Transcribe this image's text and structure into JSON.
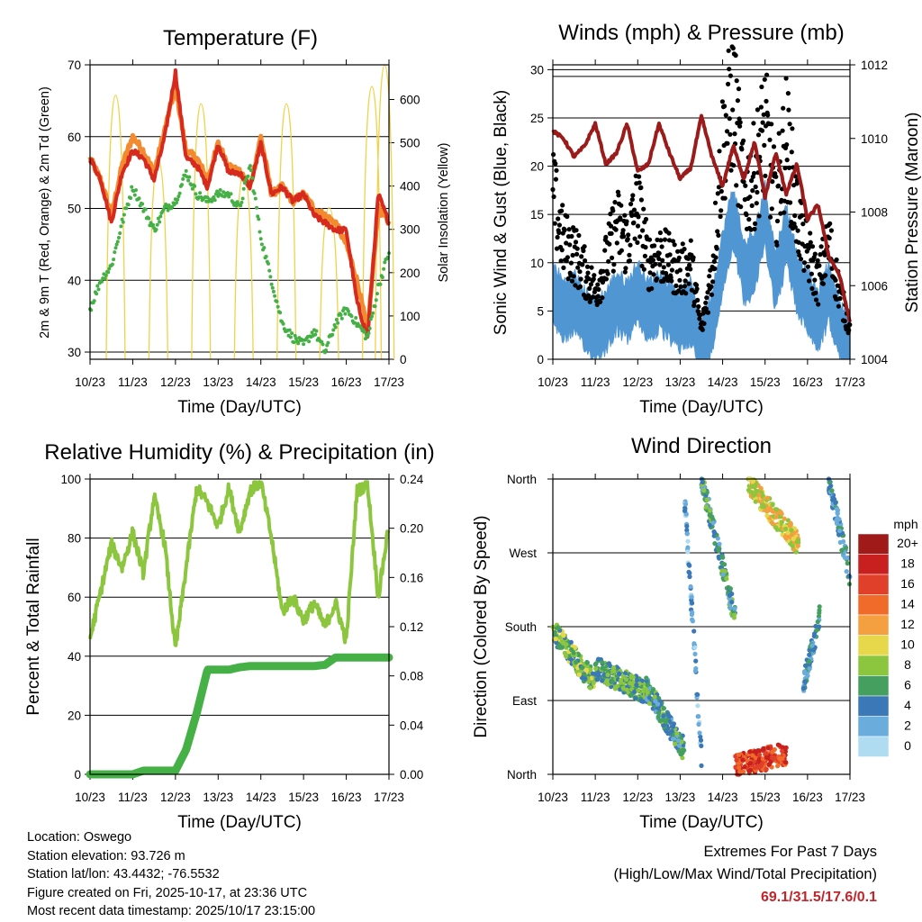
{
  "x_tick_labels": [
    "10/23",
    "11/23",
    "12/23",
    "13/23",
    "14/23",
    "15/23",
    "16/23",
    "17/23"
  ],
  "chart_data": [
    {
      "type": "line",
      "title": "Temperature (F)",
      "xlabel": "Time (Day/UTC)",
      "ylabel": "2m & 9m T (Red, Orange) & 2m Td (Green)",
      "ylabel_right": "Solar Insolation (Yellow)",
      "ylim": [
        29,
        70
      ],
      "ylim_right": [
        0,
        680
      ],
      "yticks": [
        "30",
        "40",
        "50",
        "60",
        "70"
      ],
      "yticks_right": [
        "0",
        "100",
        "200",
        "300",
        "400",
        "500",
        "600"
      ],
      "x": [
        0,
        0.25,
        0.5,
        0.75,
        1,
        1.25,
        1.5,
        1.75,
        2,
        2.25,
        2.5,
        2.75,
        3,
        3.25,
        3.5,
        3.75,
        4,
        4.25,
        4.5,
        4.75,
        5,
        5.25,
        5.5,
        5.75,
        6,
        6.25,
        6.5,
        6.75,
        7
      ],
      "series": [
        {
          "name": "2m T",
          "color": "#d62a1e",
          "values": [
            57,
            54,
            48,
            55,
            58,
            57,
            54,
            60,
            69,
            57,
            56,
            53,
            59,
            55,
            55,
            53,
            59,
            52,
            53,
            51,
            52,
            49,
            48,
            47,
            47,
            37,
            32,
            52,
            48
          ]
        },
        {
          "name": "9m T",
          "color": "#f28a30",
          "values": [
            57,
            54,
            49,
            56,
            60,
            58,
            55,
            61,
            67,
            58,
            57,
            54,
            59,
            56,
            55,
            53,
            60,
            52,
            53,
            51,
            52,
            50,
            49,
            48,
            45,
            40,
            33,
            50,
            48
          ]
        },
        {
          "name": "2m Td",
          "color": "#45b045",
          "values": [
            36,
            40,
            42,
            48,
            53,
            50,
            47,
            50,
            51,
            55,
            52,
            51,
            52,
            52,
            50,
            56,
            46,
            40,
            34,
            32,
            31,
            33,
            30,
            34,
            36,
            34,
            32,
            39,
            44
          ]
        },
        {
          "name": "Solar Insolation",
          "color": "#f0d24a",
          "peaks": [
            0.6,
            1.6,
            2.6,
            3.6,
            4.6,
            5.6,
            6.6,
            6.9
          ],
          "peak_values": [
            610,
            460,
            590,
            430,
            590,
            350,
            630,
            680
          ]
        }
      ]
    },
    {
      "type": "line",
      "title": "Winds (mph) & Pressure (mb)",
      "xlabel": "Time (Day/UTC)",
      "ylabel": "Sonic Wind & Gust (Blue, Black)",
      "ylabel_right": "Station Pressure (Maroon)",
      "ylim": [
        0,
        30.5
      ],
      "ylim_right": [
        1004,
        1012
      ],
      "yticks": [
        "0",
        "5",
        "10",
        "15",
        "20",
        "25",
        "30"
      ],
      "yticks_right": [
        "1004",
        "1006",
        "1008",
        "1010",
        "1012"
      ],
      "x": [
        0,
        0.25,
        0.5,
        0.75,
        1,
        1.25,
        1.5,
        1.75,
        2,
        2.25,
        2.5,
        2.75,
        3,
        3.25,
        3.5,
        3.75,
        4,
        4.25,
        4.5,
        4.75,
        5,
        5.25,
        5.5,
        5.75,
        6,
        6.25,
        6.5,
        6.75,
        7
      ],
      "series": [
        {
          "name": "Station Pressure",
          "color": "#9b1b1b",
          "values": [
            1010.2,
            1010,
            1009.5,
            1009.8,
            1010.4,
            1009.3,
            1009.6,
            1010.4,
            1009.1,
            1009.3,
            1010.4,
            1009.6,
            1008.9,
            1009.2,
            1010.6,
            1009.5,
            1008.7,
            1009.8,
            1008.9,
            1009.9,
            1008.4,
            1009.6,
            1008.5,
            1009.3,
            1007.8,
            1008.2,
            1006.8,
            1006.3,
            1005
          ]
        },
        {
          "name": "Sonic Wind",
          "color": "#5096d2",
          "values": [
            7,
            5,
            6,
            4,
            3,
            4,
            6,
            5,
            7,
            5,
            6,
            5,
            4,
            5,
            1,
            4,
            10,
            15,
            9,
            10,
            15,
            8,
            13,
            8,
            6,
            4,
            7,
            3,
            1
          ]
        },
        {
          "name": "Gust",
          "color": "#000000",
          "values": [
            17,
            12,
            11,
            9,
            7,
            10,
            14,
            12,
            16,
            10,
            11,
            10,
            9,
            10,
            3,
            9,
            22,
            27,
            17,
            19,
            24,
            16,
            23,
            15,
            11,
            8,
            12,
            7,
            3
          ]
        }
      ]
    },
    {
      "type": "line",
      "title": "Relative Humidity (%) & Precipitation (in)",
      "xlabel": "Time (Day/UTC)",
      "ylabel": "Percent & Total Rainfall",
      "ylim": [
        0,
        100
      ],
      "ylim_right": [
        0,
        0.24
      ],
      "yticks": [
        "0",
        "20",
        "40",
        "60",
        "80",
        "100"
      ],
      "yticks_right": [
        "0.00",
        "0.04",
        "0.08",
        "0.12",
        "0.16",
        "0.20",
        "0.24"
      ],
      "x": [
        0,
        0.25,
        0.5,
        0.75,
        1,
        1.25,
        1.5,
        1.75,
        2,
        2.25,
        2.5,
        2.75,
        3,
        3.25,
        3.5,
        3.75,
        4,
        4.25,
        4.5,
        4.75,
        5,
        5.25,
        5.5,
        5.75,
        6,
        6.25,
        6.5,
        6.75,
        7
      ],
      "series": [
        {
          "name": "Relative Humidity",
          "color": "#8cc63e",
          "values": [
            46,
            62,
            78,
            70,
            82,
            68,
            94,
            78,
            42,
            70,
            97,
            92,
            84,
            97,
            82,
            96,
            99,
            80,
            55,
            60,
            52,
            58,
            50,
            58,
            45,
            96,
            98,
            60,
            85
          ]
        },
        {
          "name": "Total Precipitation",
          "color": "#45b045",
          "values": [
            0,
            0,
            0,
            0,
            0,
            0.003,
            0.003,
            0.003,
            0.003,
            0.02,
            0.05,
            0.085,
            0.085,
            0.085,
            0.087,
            0.088,
            0.088,
            0.088,
            0.088,
            0.088,
            0.088,
            0.088,
            0.089,
            0.095,
            0.095,
            0.095,
            0.095,
            0.095,
            0.095
          ]
        }
      ]
    },
    {
      "type": "scatter",
      "title": "Wind Direction",
      "xlabel": "Time (Day/UTC)",
      "ylabel": "Direction (Colored By Speed)",
      "ylim": [
        0,
        360
      ],
      "yticks": [
        "North",
        "East",
        "South",
        "West",
        "North"
      ],
      "colorbar_title": "mph",
      "colorbar_labels": [
        "20+",
        "18",
        "16",
        "14",
        "12",
        "10",
        "8",
        "6",
        "4",
        "2",
        "0"
      ],
      "colorbar_colors": [
        "#a01a1a",
        "#c8201e",
        "#e0402a",
        "#f06a2a",
        "#f5a040",
        "#e6d84a",
        "#8cc63e",
        "#45a060",
        "#3a78b8",
        "#6aacdc",
        "#b0dcf2"
      ],
      "clusters": [
        {
          "day_start": 0,
          "day_end": 1.0,
          "dir_start": 175,
          "dir_end": 110,
          "speed": 7
        },
        {
          "day_start": 1.0,
          "day_end": 2.2,
          "dir_start": 130,
          "dir_end": 100,
          "speed": 6
        },
        {
          "day_start": 2.2,
          "day_end": 3.1,
          "dir_start": 105,
          "dir_end": 30,
          "speed": 5
        },
        {
          "day_start": 3.1,
          "day_end": 3.5,
          "dir_start": 340,
          "dir_end": 20,
          "speed": 2
        },
        {
          "day_start": 3.5,
          "day_end": 4.3,
          "dir_start": 360,
          "dir_end": 190,
          "speed": 5
        },
        {
          "day_start": 4.3,
          "day_end": 5.5,
          "dir_start": 10,
          "dir_end": 25,
          "speed": 16
        },
        {
          "day_start": 4.6,
          "day_end": 5.8,
          "dir_start": 355,
          "dir_end": 280,
          "speed": 10
        },
        {
          "day_start": 5.9,
          "day_end": 6.3,
          "dir_start": 110,
          "dir_end": 195,
          "speed": 4
        },
        {
          "day_start": 6.5,
          "day_end": 7.0,
          "dir_start": 360,
          "dir_end": 240,
          "speed": 4
        }
      ]
    }
  ],
  "info": {
    "location": "Location: Oswego",
    "elevation": "Station elevation: 93.726 m",
    "latlon": "Station lat/lon: 43.4432; -76.5532",
    "created": "Figure created on Fri, 2025-10-17, at 23:36 UTC",
    "timestamp": "Most recent data timestamp: 2025/10/17 23:15:00"
  },
  "extremes": {
    "title": "Extremes For Past 7 Days",
    "subtitle": "(High/Low/Max Wind/Total Precipitation)",
    "values": "69.1/31.5/17.6/0.1",
    "value_color": "#c0262b"
  }
}
